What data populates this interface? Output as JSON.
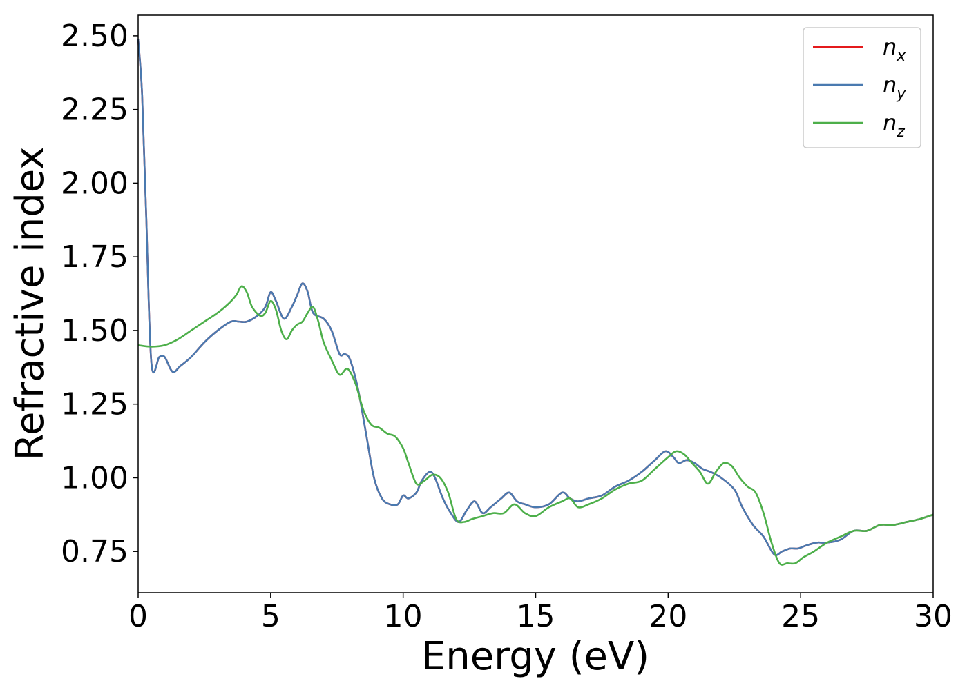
{
  "chart_data": {
    "type": "line",
    "xlabel": "Energy (eV)",
    "ylabel": "Refractive index",
    "xlim": [
      0,
      30
    ],
    "ylim": [
      0.61,
      2.57
    ],
    "xticks": [
      {
        "value": 0,
        "label": "0"
      },
      {
        "value": 5,
        "label": "5"
      },
      {
        "value": 10,
        "label": "10"
      },
      {
        "value": 15,
        "label": "15"
      },
      {
        "value": 20,
        "label": "20"
      },
      {
        "value": 25,
        "label": "25"
      },
      {
        "value": 30,
        "label": "30"
      }
    ],
    "yticks": [
      {
        "value": 0.75,
        "label": "0.75"
      },
      {
        "value": 1.0,
        "label": "1.00"
      },
      {
        "value": 1.25,
        "label": "1.25"
      },
      {
        "value": 1.5,
        "label": "1.50"
      },
      {
        "value": 1.75,
        "label": "1.75"
      },
      {
        "value": 2.0,
        "label": "2.00"
      },
      {
        "value": 2.25,
        "label": "2.25"
      },
      {
        "value": 2.5,
        "label": "2.50"
      }
    ],
    "grid": false,
    "legend_position": "top-right",
    "series": [
      {
        "name": "n_x",
        "legend_base": "n",
        "legend_sub": "x",
        "color": "#e41a1c",
        "x": [
          0.0,
          0.15,
          0.3,
          0.5,
          0.8,
          1.0,
          1.3,
          1.6,
          2.0,
          2.5,
          3.0,
          3.5,
          3.8,
          4.1,
          4.5,
          4.8,
          5.0,
          5.2,
          5.5,
          5.8,
          6.0,
          6.2,
          6.4,
          6.6,
          7.0,
          7.3,
          7.6,
          7.8,
          8.0,
          8.3,
          8.6,
          8.9,
          9.2,
          9.5,
          9.8,
          10.0,
          10.2,
          10.5,
          10.7,
          11.0,
          11.2,
          11.5,
          11.8,
          12.1,
          12.4,
          12.7,
          13.0,
          13.3,
          13.7,
          14.0,
          14.3,
          14.6,
          15.0,
          15.5,
          16.0,
          16.3,
          16.6,
          17.0,
          17.5,
          18.0,
          18.5,
          19.0,
          19.5,
          19.9,
          20.2,
          20.4,
          20.7,
          21.0,
          21.3,
          21.6,
          22.0,
          22.5,
          22.8,
          23.2,
          23.6,
          24.0,
          24.3,
          24.6,
          24.9,
          25.2,
          25.6,
          26.0,
          26.5,
          27.0,
          27.5,
          28.0,
          28.5,
          29.0,
          29.5,
          30.0
        ],
        "y": [
          2.49,
          2.3,
          1.9,
          1.39,
          1.41,
          1.41,
          1.36,
          1.38,
          1.41,
          1.46,
          1.5,
          1.53,
          1.53,
          1.53,
          1.55,
          1.58,
          1.63,
          1.6,
          1.54,
          1.58,
          1.62,
          1.66,
          1.63,
          1.56,
          1.54,
          1.5,
          1.42,
          1.42,
          1.4,
          1.3,
          1.15,
          1.0,
          0.93,
          0.91,
          0.91,
          0.94,
          0.93,
          0.95,
          0.99,
          1.02,
          1.0,
          0.93,
          0.88,
          0.85,
          0.89,
          0.92,
          0.88,
          0.9,
          0.93,
          0.95,
          0.92,
          0.91,
          0.9,
          0.91,
          0.95,
          0.93,
          0.92,
          0.93,
          0.94,
          0.97,
          0.99,
          1.02,
          1.06,
          1.09,
          1.07,
          1.05,
          1.06,
          1.05,
          1.03,
          1.02,
          1.0,
          0.96,
          0.9,
          0.84,
          0.8,
          0.74,
          0.75,
          0.76,
          0.76,
          0.77,
          0.78,
          0.78,
          0.79,
          0.82,
          0.82,
          0.84,
          0.84,
          0.85,
          0.86,
          0.875
        ]
      },
      {
        "name": "n_y",
        "legend_base": "n",
        "legend_sub": "y",
        "color": "#4a7ab0",
        "x": [
          0.0,
          0.15,
          0.3,
          0.5,
          0.8,
          1.0,
          1.3,
          1.6,
          2.0,
          2.5,
          3.0,
          3.5,
          3.8,
          4.1,
          4.5,
          4.8,
          5.0,
          5.2,
          5.5,
          5.8,
          6.0,
          6.2,
          6.4,
          6.6,
          7.0,
          7.3,
          7.6,
          7.8,
          8.0,
          8.3,
          8.6,
          8.9,
          9.2,
          9.5,
          9.8,
          10.0,
          10.2,
          10.5,
          10.7,
          11.0,
          11.2,
          11.5,
          11.8,
          12.1,
          12.4,
          12.7,
          13.0,
          13.3,
          13.7,
          14.0,
          14.3,
          14.6,
          15.0,
          15.5,
          16.0,
          16.3,
          16.6,
          17.0,
          17.5,
          18.0,
          18.5,
          19.0,
          19.5,
          19.9,
          20.2,
          20.4,
          20.7,
          21.0,
          21.3,
          21.6,
          22.0,
          22.5,
          22.8,
          23.2,
          23.6,
          24.0,
          24.3,
          24.6,
          24.9,
          25.2,
          25.6,
          26.0,
          26.5,
          27.0,
          27.5,
          28.0,
          28.5,
          29.0,
          29.5,
          30.0
        ],
        "y": [
          2.49,
          2.3,
          1.9,
          1.39,
          1.41,
          1.41,
          1.36,
          1.38,
          1.41,
          1.46,
          1.5,
          1.53,
          1.53,
          1.53,
          1.55,
          1.58,
          1.63,
          1.6,
          1.54,
          1.58,
          1.62,
          1.66,
          1.63,
          1.56,
          1.54,
          1.5,
          1.42,
          1.42,
          1.4,
          1.3,
          1.15,
          1.0,
          0.93,
          0.91,
          0.91,
          0.94,
          0.93,
          0.95,
          0.99,
          1.02,
          1.0,
          0.93,
          0.88,
          0.85,
          0.89,
          0.92,
          0.88,
          0.9,
          0.93,
          0.95,
          0.92,
          0.91,
          0.9,
          0.91,
          0.95,
          0.93,
          0.92,
          0.93,
          0.94,
          0.97,
          0.99,
          1.02,
          1.06,
          1.09,
          1.07,
          1.05,
          1.06,
          1.05,
          1.03,
          1.02,
          1.0,
          0.96,
          0.9,
          0.84,
          0.8,
          0.74,
          0.75,
          0.76,
          0.76,
          0.77,
          0.78,
          0.78,
          0.79,
          0.82,
          0.82,
          0.84,
          0.84,
          0.85,
          0.86,
          0.875
        ]
      },
      {
        "name": "n_z",
        "legend_base": "n",
        "legend_sub": "z",
        "color": "#4daf4a",
        "x": [
          0.0,
          0.5,
          1.0,
          1.5,
          2.0,
          2.5,
          3.0,
          3.4,
          3.7,
          3.9,
          4.1,
          4.3,
          4.6,
          4.8,
          5.0,
          5.2,
          5.4,
          5.6,
          5.8,
          6.0,
          6.2,
          6.4,
          6.6,
          6.8,
          7.0,
          7.3,
          7.6,
          7.9,
          8.2,
          8.5,
          8.8,
          9.1,
          9.4,
          9.7,
          10.0,
          10.2,
          10.5,
          10.8,
          11.1,
          11.4,
          11.7,
          12.0,
          12.3,
          12.6,
          13.0,
          13.4,
          13.8,
          14.2,
          14.6,
          15.0,
          15.5,
          16.0,
          16.3,
          16.6,
          17.0,
          17.5,
          18.0,
          18.5,
          19.0,
          19.5,
          20.0,
          20.3,
          20.6,
          20.9,
          21.2,
          21.5,
          21.8,
          22.1,
          22.4,
          22.7,
          23.0,
          23.3,
          23.6,
          23.9,
          24.2,
          24.5,
          24.8,
          25.1,
          25.5,
          26.0,
          26.5,
          27.0,
          27.5,
          28.0,
          28.5,
          29.0,
          29.5,
          30.0
        ],
        "y": [
          1.45,
          1.445,
          1.45,
          1.47,
          1.5,
          1.53,
          1.56,
          1.59,
          1.62,
          1.65,
          1.63,
          1.58,
          1.55,
          1.56,
          1.6,
          1.57,
          1.5,
          1.47,
          1.5,
          1.52,
          1.53,
          1.56,
          1.58,
          1.53,
          1.46,
          1.4,
          1.35,
          1.37,
          1.32,
          1.23,
          1.18,
          1.17,
          1.15,
          1.14,
          1.1,
          1.05,
          0.98,
          0.99,
          1.01,
          1.0,
          0.95,
          0.86,
          0.85,
          0.86,
          0.87,
          0.88,
          0.88,
          0.91,
          0.88,
          0.87,
          0.9,
          0.92,
          0.93,
          0.9,
          0.91,
          0.93,
          0.96,
          0.98,
          0.99,
          1.03,
          1.07,
          1.09,
          1.08,
          1.05,
          1.02,
          0.98,
          1.02,
          1.05,
          1.04,
          1.0,
          0.97,
          0.95,
          0.88,
          0.78,
          0.71,
          0.71,
          0.71,
          0.73,
          0.75,
          0.78,
          0.8,
          0.82,
          0.82,
          0.84,
          0.84,
          0.85,
          0.86,
          0.875
        ]
      }
    ]
  }
}
